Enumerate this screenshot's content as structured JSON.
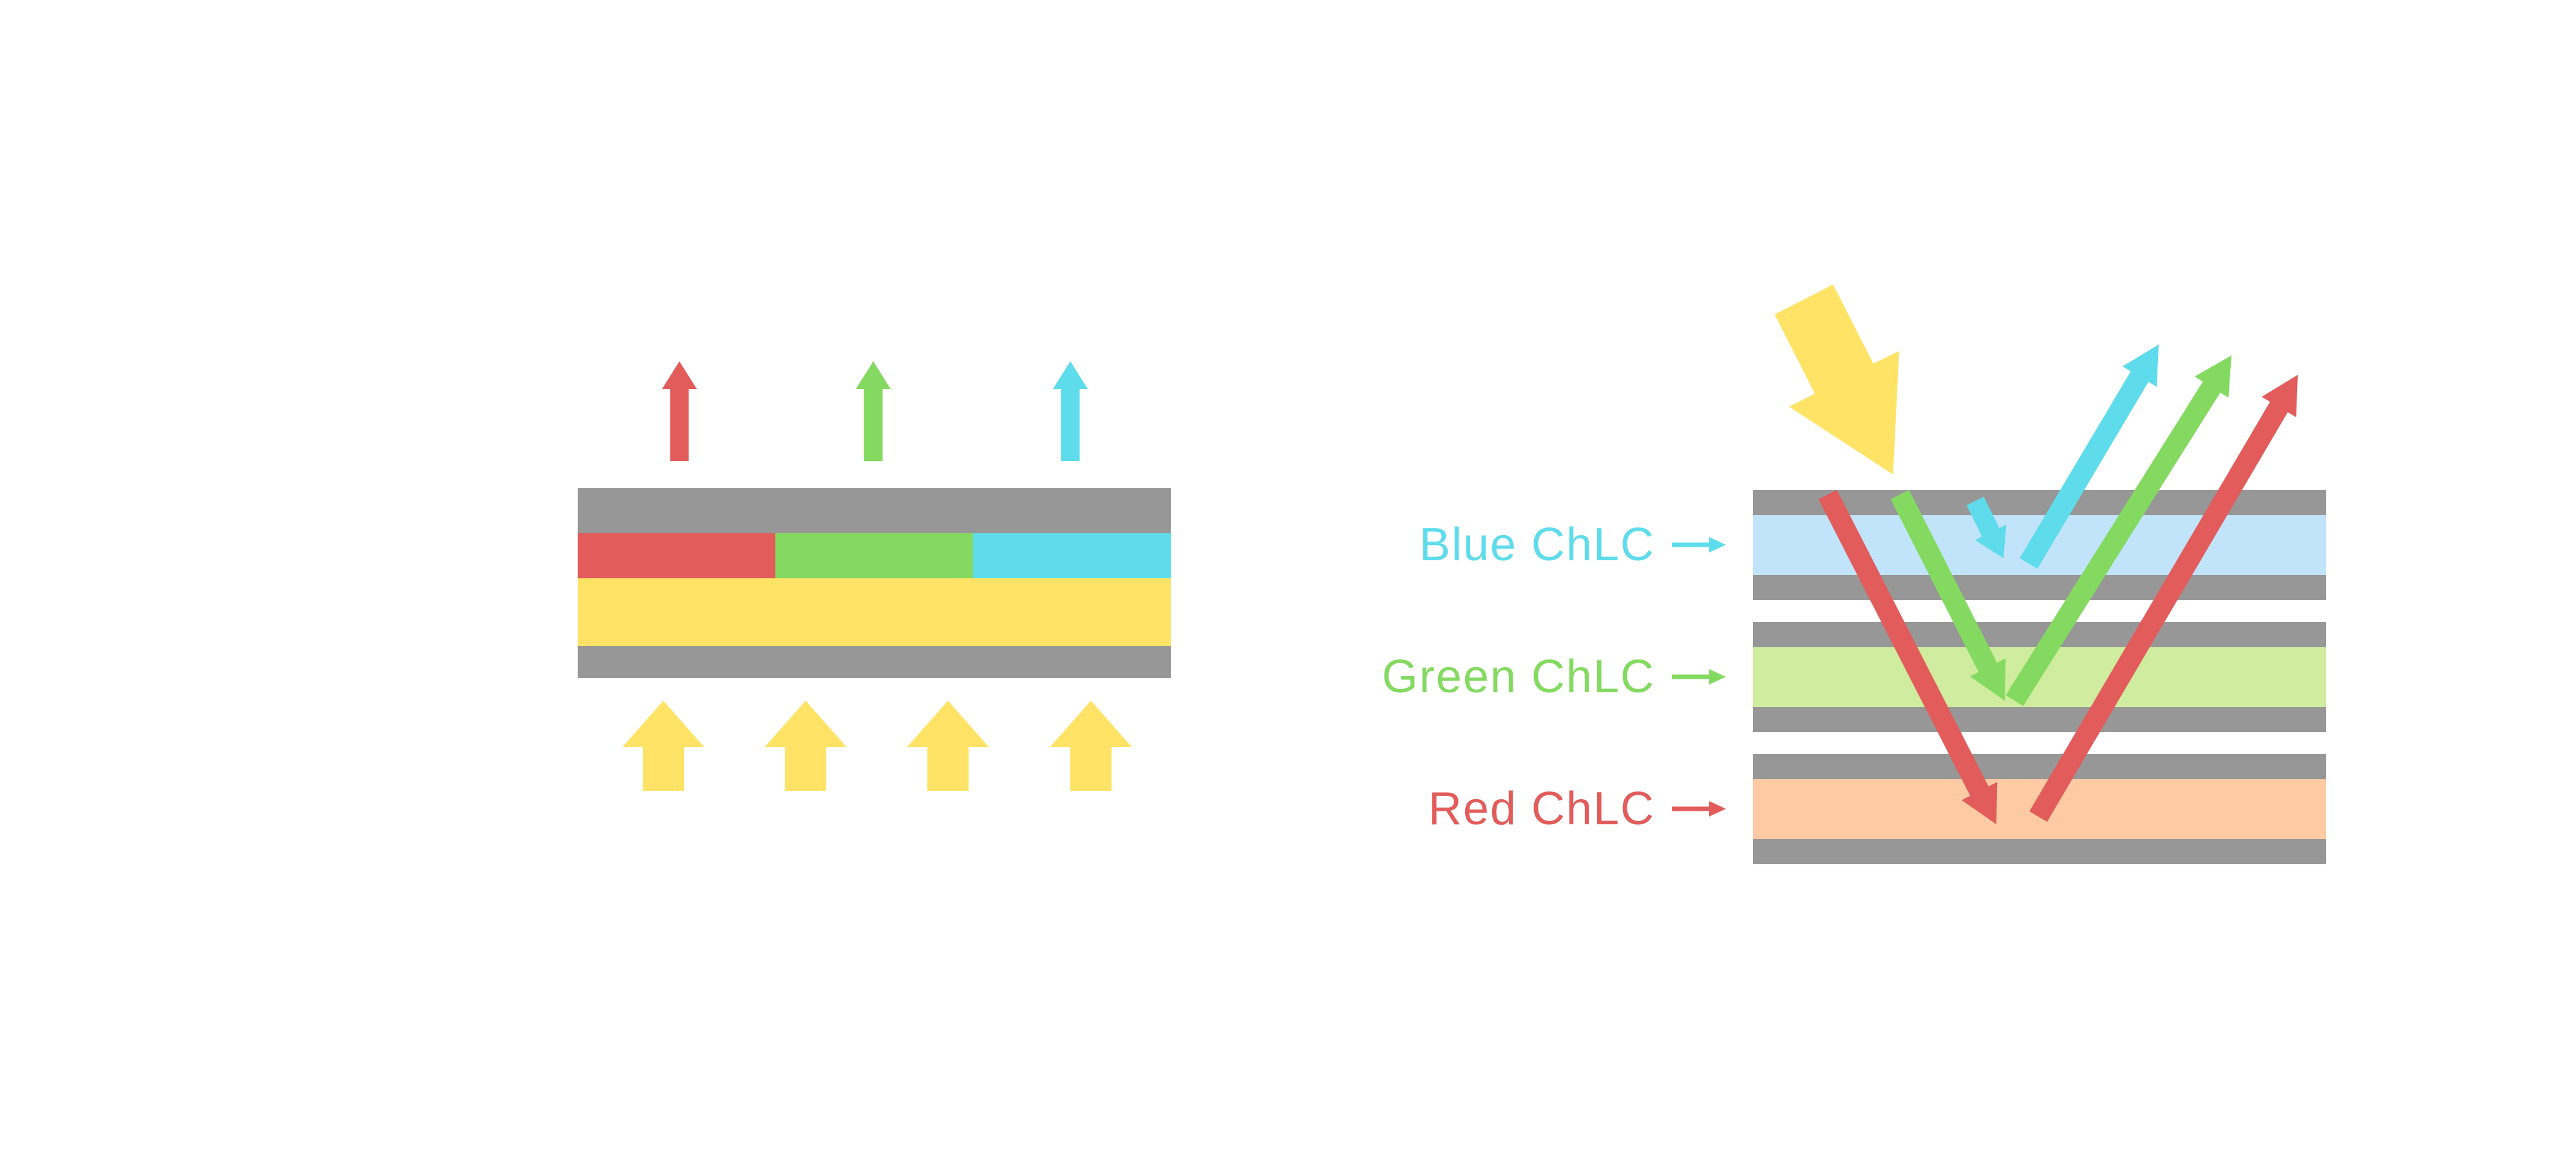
{
  "colors": {
    "background": "#FFFFFF",
    "red": "#E15C5A",
    "green": "#84DA60",
    "cyan": "#5EDCEC",
    "yellow": "#FFE366",
    "gray": "#979797",
    "pale_blue": "#C2E4FB",
    "pale_green": "#D0EC9E",
    "pale_orange": "#FDCAA4"
  },
  "right_diagram": {
    "labels": [
      {
        "text": "Blue ChLC",
        "color": "#5EDCEC"
      },
      {
        "text": "Green ChLC",
        "color": "#84DA60"
      },
      {
        "text": "Red ChLC",
        "color": "#E15C5A"
      }
    ]
  },
  "icons": {
    "left_output_arrows": [
      "red-up-arrow",
      "green-up-arrow",
      "cyan-up-arrow"
    ],
    "backlight_arrows": [
      "yellow-up-arrow",
      "yellow-up-arrow",
      "yellow-up-arrow",
      "yellow-up-arrow"
    ],
    "incident_light_arrow": "large-yellow-diagonal-down-arrow",
    "transmitted_arrows": [
      "red-down-arrow",
      "green-down-arrow",
      "cyan-down-arrow"
    ],
    "reflected_arrows": [
      "cyan-up-right-arrow",
      "green-up-right-arrow",
      "red-up-right-arrow"
    ],
    "label_pointer_arrows": [
      "cyan-right-arrow",
      "green-right-arrow",
      "red-right-arrow"
    ]
  }
}
